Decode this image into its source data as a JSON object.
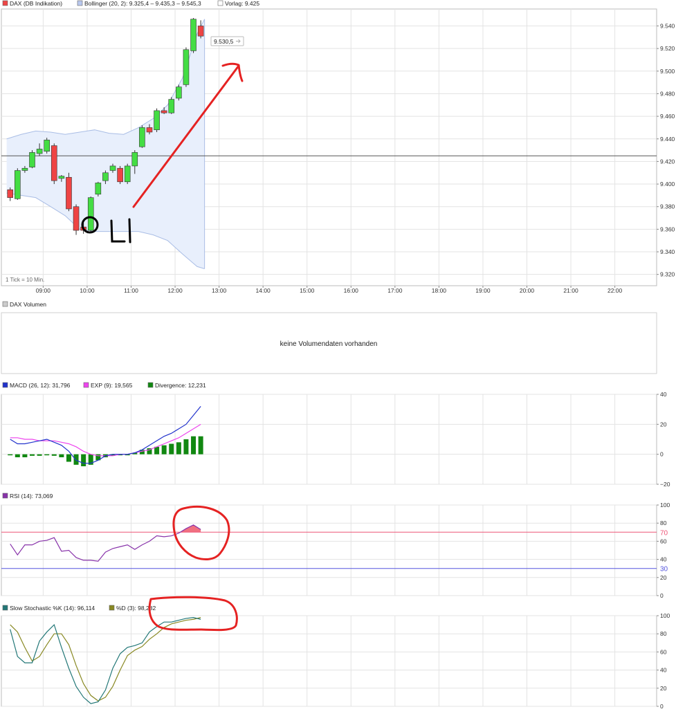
{
  "colors": {
    "up": "#44dd44",
    "down": "#ee4444",
    "grid": "#e3e3e3",
    "frame": "#bbbbbb",
    "band_fill": "#e8effc",
    "band_line": "#a9bde5",
    "vortag": "#555555",
    "macd": "#2233cc",
    "exp": "#ee44ee",
    "div": "#118811",
    "rsi": "#8833aa",
    "rsi70": "#ee5577",
    "rsi30": "#5555dd",
    "stoch_k": "#227777",
    "stoch_d": "#888822",
    "annot": "#e52222"
  },
  "main": {
    "legend": [
      {
        "text": "DAX (DB Indikation)",
        "swatch": "#ee4444"
      },
      {
        "text": "Bollinger (20, 2): 9.325,4 – 9.435,3 – 9.545,3",
        "swatch": "#b8c8ee"
      },
      {
        "text": "Vorlag: 9.425",
        "swatch": "#ffffff"
      }
    ],
    "tick_note": "1 Tick = 10 Min.",
    "price_tag": "9.530,5",
    "annotation_text": "OLI"
  },
  "volume": {
    "legend": [
      {
        "text": "DAX Volumen",
        "swatch": "#cccccc"
      }
    ],
    "message": "keine Volumendaten vorhanden"
  },
  "macd": {
    "legend": [
      {
        "text": "MACD (26, 12): 31,796",
        "swatch": "#2233cc"
      },
      {
        "text": "EXP (9): 19,565",
        "swatch": "#ee44ee"
      },
      {
        "text": "Divergence: 12,231",
        "swatch": "#118811"
      }
    ]
  },
  "rsi": {
    "legend": [
      {
        "text": "RSI (14): 73,069",
        "swatch": "#8833aa"
      }
    ]
  },
  "stoch": {
    "legend": [
      {
        "text": "Slow Stochastic %K (14): 96,114",
        "swatch": "#227777"
      },
      {
        "text": "%D (3): 98,282",
        "swatch": "#888822"
      }
    ]
  },
  "chart_data": [
    {
      "type": "candlestick",
      "title": "DAX (DB Indikation)",
      "ylim": [
        9310,
        9555
      ],
      "y_ticks": [
        "9.320",
        "9.340",
        "9.360",
        "9.380",
        "9.400",
        "9.420",
        "9.440",
        "9.460",
        "9.480",
        "9.500",
        "9.520",
        "9.540"
      ],
      "y_tick_values": [
        9320,
        9340,
        9360,
        9380,
        9400,
        9420,
        9440,
        9460,
        9480,
        9500,
        9520,
        9540
      ],
      "x_ticks": [
        "09:00",
        "10:00",
        "11:00",
        "12:00",
        "13:00",
        "14:00",
        "15:00",
        "16:00",
        "17:00",
        "18:00",
        "19:00",
        "20:00",
        "21:00",
        "22:00"
      ],
      "x_tick_hours": [
        9,
        10,
        11,
        12,
        13,
        14,
        15,
        16,
        17,
        18,
        19,
        20,
        21,
        22
      ],
      "x_range_hours": [
        8.05,
        22.95
      ],
      "candle_interval_min": 10,
      "vorlag": 9425,
      "candles": [
        {
          "t": "08:10",
          "o": 9395,
          "h": 9397,
          "l": 9385,
          "c": 9388
        },
        {
          "t": "08:20",
          "o": 9387,
          "h": 9414,
          "l": 9386,
          "c": 9412
        },
        {
          "t": "08:30",
          "o": 9412,
          "h": 9416,
          "l": 9410,
          "c": 9414
        },
        {
          "t": "08:40",
          "o": 9415,
          "h": 9430,
          "l": 9414,
          "c": 9428
        },
        {
          "t": "08:50",
          "o": 9427,
          "h": 9436,
          "l": 9425,
          "c": 9431
        },
        {
          "t": "09:00",
          "o": 9429,
          "h": 9441,
          "l": 9427,
          "c": 9439
        },
        {
          "t": "09:10",
          "o": 9434,
          "h": 9436,
          "l": 9400,
          "c": 9403
        },
        {
          "t": "09:20",
          "o": 9405,
          "h": 9408,
          "l": 9402,
          "c": 9407
        },
        {
          "t": "09:30",
          "o": 9406,
          "h": 9410,
          "l": 9376,
          "c": 9378
        },
        {
          "t": "09:40",
          "o": 9380,
          "h": 9382,
          "l": 9355,
          "c": 9359
        },
        {
          "t": "09:50",
          "o": 9362,
          "h": 9366,
          "l": 9356,
          "c": 9359
        },
        {
          "t": "10:00",
          "o": 9359,
          "h": 9389,
          "l": 9357,
          "c": 9388
        },
        {
          "t": "10:10",
          "o": 9391,
          "h": 9402,
          "l": 9389,
          "c": 9401
        },
        {
          "t": "10:20",
          "o": 9403,
          "h": 9412,
          "l": 9400,
          "c": 9410
        },
        {
          "t": "10:30",
          "o": 9412,
          "h": 9418,
          "l": 9410,
          "c": 9416
        },
        {
          "t": "10:40",
          "o": 9414,
          "h": 9416,
          "l": 9400,
          "c": 9402
        },
        {
          "t": "10:50",
          "o": 9402,
          "h": 9418,
          "l": 9400,
          "c": 9416
        },
        {
          "t": "11:00",
          "o": 9416,
          "h": 9430,
          "l": 9409,
          "c": 9428
        },
        {
          "t": "11:10",
          "o": 9433,
          "h": 9452,
          "l": 9432,
          "c": 9450
        },
        {
          "t": "11:20",
          "o": 9450,
          "h": 9453,
          "l": 9444,
          "c": 9446
        },
        {
          "t": "11:30",
          "o": 9448,
          "h": 9467,
          "l": 9446,
          "c": 9465
        },
        {
          "t": "11:40",
          "o": 9465,
          "h": 9468,
          "l": 9462,
          "c": 9463
        },
        {
          "t": "11:50",
          "o": 9463,
          "h": 9477,
          "l": 9462,
          "c": 9475
        },
        {
          "t": "12:00",
          "o": 9476,
          "h": 9488,
          "l": 9474,
          "c": 9486
        },
        {
          "t": "12:10",
          "o": 9488,
          "h": 9521,
          "l": 9486,
          "c": 9519
        },
        {
          "t": "12:20",
          "o": 9518,
          "h": 9547,
          "l": 9516,
          "c": 9546
        },
        {
          "t": "12:30",
          "o": 9540,
          "h": 9545,
          "l": 9529,
          "c": 9531
        }
      ],
      "bollinger_hours": [
        8.17,
        8.5,
        8.83,
        9.17,
        9.5,
        9.83,
        10.17,
        10.5,
        10.83,
        11.17,
        11.5,
        11.83,
        12.17,
        12.5,
        12.67
      ],
      "bollinger_upper": [
        9440,
        9444,
        9447,
        9446,
        9444,
        9446,
        9448,
        9445,
        9444,
        9450,
        9458,
        9470,
        9494,
        9533,
        9546
      ],
      "bollinger_lower": [
        9392,
        9390,
        9388,
        9380,
        9372,
        9360,
        9358,
        9358,
        9358,
        9358,
        9355,
        9350,
        9338,
        9327,
        9325
      ]
    },
    {
      "type": "line",
      "title": "MACD",
      "ylim": [
        -20,
        40
      ],
      "y_ticks": [
        "−20",
        "0",
        "20",
        "40"
      ],
      "y_tick_values": [
        -20,
        0,
        20,
        40
      ],
      "series": [
        {
          "name": "MACD (26, 12)",
          "values": [
            10,
            7,
            7,
            8,
            9,
            10,
            8,
            6,
            2,
            -4,
            -6,
            -6,
            -4,
            -1,
            0,
            0,
            0,
            1,
            3,
            6,
            9,
            12,
            14,
            17,
            20,
            26,
            32
          ]
        },
        {
          "name": "EXP (9)",
          "values": [
            11,
            11,
            10,
            10,
            9,
            9,
            9,
            8,
            7,
            5,
            2,
            0,
            -1,
            -1,
            -1,
            0,
            0,
            1,
            2,
            3,
            5,
            7,
            9,
            11,
            14,
            17,
            20
          ]
        },
        {
          "name": "Divergence",
          "type": "bar",
          "values": [
            0,
            -2,
            -2,
            -1,
            -1,
            0,
            -1,
            -2,
            -5,
            -7,
            -8,
            -7,
            -4,
            -2,
            -1,
            0,
            0,
            1,
            3,
            4,
            5,
            6,
            7,
            8,
            10,
            12,
            12
          ]
        }
      ]
    },
    {
      "type": "line",
      "title": "RSI",
      "ylim": [
        0,
        100
      ],
      "y_ticks": [
        "0",
        "20",
        "40",
        "60",
        "80",
        "100"
      ],
      "y_tick_values": [
        0,
        20,
        40,
        60,
        80,
        100
      ],
      "reference_lines": [
        {
          "value": 70,
          "label": "70"
        },
        {
          "value": 30,
          "label": "30"
        }
      ],
      "series": [
        {
          "name": "RSI (14)",
          "values": [
            57,
            45,
            56,
            56,
            60,
            61,
            64,
            49,
            50,
            42,
            39,
            39,
            38,
            48,
            52,
            54,
            56,
            51,
            56,
            60,
            66,
            65,
            66,
            69,
            74,
            78,
            73
          ]
        }
      ]
    },
    {
      "type": "line",
      "title": "Slow Stochastic",
      "ylim": [
        0,
        100
      ],
      "y_ticks": [
        "0",
        "20",
        "40",
        "60",
        "80",
        "100"
      ],
      "y_tick_values": [
        0,
        20,
        40,
        60,
        80,
        100
      ],
      "series": [
        {
          "name": "Slow Stochastic %K (14)",
          "values": [
            85,
            55,
            48,
            48,
            72,
            82,
            90,
            65,
            42,
            22,
            10,
            3,
            5,
            18,
            42,
            58,
            65,
            67,
            70,
            82,
            88,
            93,
            93,
            95,
            97,
            98,
            96
          ]
        },
        {
          "name": "%D (3)",
          "values": [
            90,
            82,
            65,
            50,
            55,
            68,
            80,
            80,
            68,
            45,
            25,
            12,
            6,
            10,
            22,
            40,
            56,
            62,
            66,
            74,
            80,
            87,
            91,
            93,
            95,
            96,
            98
          ]
        }
      ]
    }
  ]
}
